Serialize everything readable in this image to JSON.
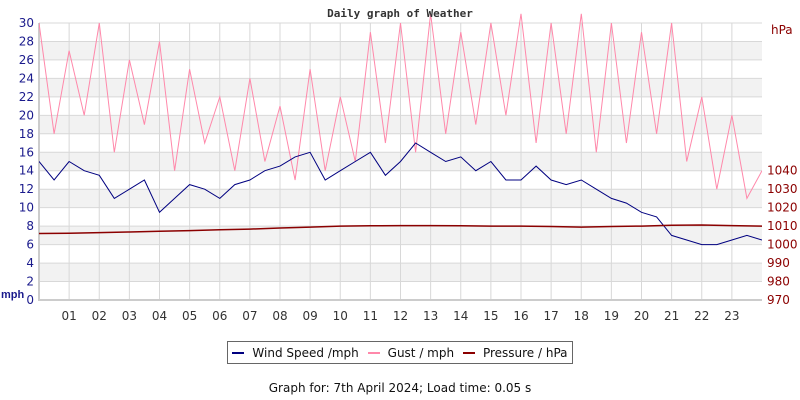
{
  "chart_data": {
    "type": "line",
    "title": "Daily graph of Weather",
    "left_axis": {
      "label": "mph",
      "ylim": [
        0,
        30
      ],
      "ticks": [
        0,
        2,
        4,
        6,
        8,
        10,
        12,
        14,
        16,
        18,
        20,
        22,
        24,
        26,
        28,
        30
      ],
      "color": "#1a1a8c"
    },
    "right_axis": {
      "label": "hPa",
      "ylim": [
        970,
        1045
      ],
      "ticks": [
        970,
        980,
        990,
        1000,
        1010,
        1020,
        1030,
        1040
      ],
      "color": "#8b0000"
    },
    "x_ticks": [
      "01",
      "02",
      "03",
      "04",
      "05",
      "06",
      "07",
      "08",
      "09",
      "10",
      "11",
      "12",
      "13",
      "14",
      "15",
      "16",
      "17",
      "18",
      "19",
      "20",
      "21",
      "22",
      "23"
    ],
    "xlim_hours": [
      0,
      24
    ],
    "grid": true,
    "series": [
      {
        "name": "Wind Speed /mph",
        "color": "#000080",
        "axis": "left",
        "step_hours": 0.5,
        "values": [
          15,
          13,
          15,
          14,
          13.5,
          11,
          12,
          13,
          9.5,
          11,
          12.5,
          12,
          11,
          12.5,
          13,
          14,
          14.5,
          15.5,
          16,
          13,
          14,
          15,
          16,
          13.5,
          15,
          17,
          16,
          15,
          15.5,
          14,
          15,
          13,
          13,
          14.5,
          13,
          12.5,
          13,
          12,
          11,
          10.5,
          9.5,
          9,
          7,
          6.5,
          6,
          6,
          6.5,
          7,
          6.5
        ]
      },
      {
        "name": "Gust / mph",
        "color": "#ff88aa",
        "axis": "left",
        "step_hours": 0.5,
        "values": [
          30,
          18,
          27,
          20,
          30,
          16,
          26,
          19,
          28,
          14,
          25,
          17,
          22,
          14,
          24,
          15,
          21,
          13,
          25,
          14,
          22,
          15,
          29,
          17,
          30,
          16,
          31,
          18,
          29,
          19,
          30,
          20,
          31,
          17,
          30,
          18,
          31,
          16,
          30,
          17,
          29,
          18,
          30,
          15,
          22,
          12,
          20,
          11,
          14
        ]
      },
      {
        "name": "Pressure / hPa",
        "color": "#8b0000",
        "axis": "right",
        "step_hours": 1,
        "values": [
          1006,
          1006.2,
          1006.5,
          1006.8,
          1007.2,
          1007.6,
          1008,
          1008.4,
          1009,
          1009.5,
          1010,
          1010.2,
          1010.3,
          1010.3,
          1010.2,
          1010,
          1010,
          1009.8,
          1009.5,
          1009.8,
          1010,
          1010.5,
          1010.6,
          1010.3,
          1010
        ]
      }
    ],
    "legend": "bottom-center"
  },
  "footer": "Graph for: 7th April 2024; Load time: 0.05 s"
}
